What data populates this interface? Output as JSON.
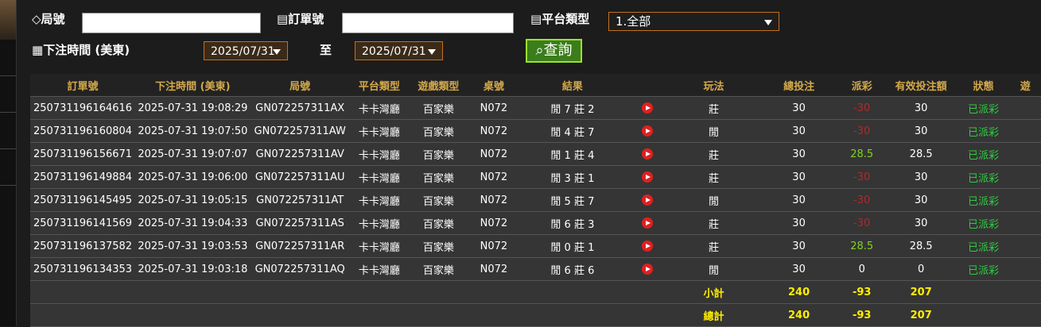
{
  "filters": {
    "round_label": "局號",
    "order_label": "訂單號",
    "platform_label": "平台類型",
    "platform_value": "1.全部",
    "time_label": "下注時間 (美東)",
    "date_from": "2025/07/31",
    "to_label": "至",
    "date_to": "2025/07/31",
    "search_button": "查詢"
  },
  "table": {
    "headers": [
      "訂單號",
      "下注時間 (美東)",
      "局號",
      "平台類型",
      "遊戲類型",
      "桌號",
      "結果",
      "玩法",
      "總投注",
      "派彩",
      "有效投注額",
      "狀態",
      "遊"
    ],
    "rows": [
      [
        "250731196164616",
        "2025-07-31 19:08:29",
        "GN072257311AX",
        "卡卡灣廳",
        "百家樂",
        "N072",
        "閒 7 莊 2",
        "莊",
        30,
        -30,
        30,
        "已派彩"
      ],
      [
        "250731196160804",
        "2025-07-31 19:07:50",
        "GN072257311AW",
        "卡卡灣廳",
        "百家樂",
        "N072",
        "閒 4 莊 7",
        "閒",
        30,
        -30,
        30,
        "已派彩"
      ],
      [
        "250731196156671",
        "2025-07-31 19:07:07",
        "GN072257311AV",
        "卡卡灣廳",
        "百家樂",
        "N072",
        "閒 1 莊 4",
        "莊",
        30,
        28.5,
        28.5,
        "已派彩"
      ],
      [
        "250731196149884",
        "2025-07-31 19:06:00",
        "GN072257311AU",
        "卡卡灣廳",
        "百家樂",
        "N072",
        "閒 3 莊 1",
        "莊",
        30,
        -30,
        30,
        "已派彩"
      ],
      [
        "250731196145495",
        "2025-07-31 19:05:15",
        "GN072257311AT",
        "卡卡灣廳",
        "百家樂",
        "N072",
        "閒 5 莊 7",
        "閒",
        30,
        -30,
        30,
        "已派彩"
      ],
      [
        "250731196141569",
        "2025-07-31 19:04:33",
        "GN072257311AS",
        "卡卡灣廳",
        "百家樂",
        "N072",
        "閒 6 莊 3",
        "莊",
        30,
        -30,
        30,
        "已派彩"
      ],
      [
        "250731196137582",
        "2025-07-31 19:03:53",
        "GN072257311AR",
        "卡卡灣廳",
        "百家樂",
        "N072",
        "閒 0 莊 1",
        "莊",
        30,
        28.5,
        28.5,
        "已派彩"
      ],
      [
        "250731196134353",
        "2025-07-31 19:03:18",
        "GN072257311AQ",
        "卡卡灣廳",
        "百家樂",
        "N072",
        "閒 6 莊 6",
        "閒",
        30,
        0,
        0,
        "已派彩"
      ]
    ],
    "subtotal": {
      "label": "小計",
      "bet": 240,
      "payout": -93,
      "valid": 207
    },
    "total": {
      "label": "總計",
      "bet": 240,
      "payout": -93,
      "valid": 207
    }
  }
}
